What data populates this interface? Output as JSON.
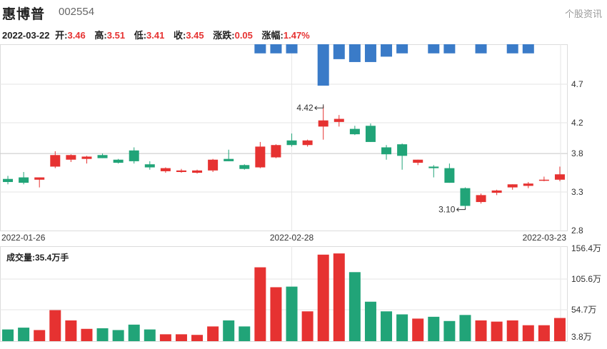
{
  "header": {
    "name": "惠博普",
    "code": "002554",
    "news_link": "个股资讯"
  },
  "quote": {
    "date": "2022-03-22",
    "open_label": "开:",
    "open": "3.46",
    "high_label": "高:",
    "high": "3.51",
    "low_label": "低:",
    "low": "3.41",
    "close_label": "收:",
    "close": "3.45",
    "change_label": "涨跌:",
    "change": "0.05",
    "pct_label": "涨幅:",
    "pct": "1.47%"
  },
  "colors": {
    "up": "#e63231",
    "down": "#21a478",
    "bar_top": "#3a7bc8",
    "grid": "#e6e6e6",
    "ref_line": "#cccccc"
  },
  "chart_data": [
    {
      "type": "candlestick",
      "y_ticks": [
        "4.7",
        "4.2",
        "3.8",
        "3.3",
        "2.8"
      ],
      "ylim": [
        2.8,
        4.7
      ],
      "x_labels": [
        "2022-01-26",
        "2022-02-28",
        "2022-03-23"
      ],
      "reference_price": 3.8,
      "annotations": [
        {
          "label": "4.42",
          "index": 20,
          "kind": "high"
        },
        {
          "label": "3.10",
          "index": 29,
          "kind": "low"
        }
      ],
      "candles": [
        {
          "o": 3.47,
          "h": 3.51,
          "l": 3.4,
          "c": 3.43
        },
        {
          "o": 3.49,
          "h": 3.56,
          "l": 3.4,
          "c": 3.42
        },
        {
          "o": 3.46,
          "h": 3.49,
          "l": 3.36,
          "c": 3.49
        },
        {
          "o": 3.63,
          "h": 3.83,
          "l": 3.61,
          "c": 3.78
        },
        {
          "o": 3.72,
          "h": 3.79,
          "l": 3.69,
          "c": 3.78
        },
        {
          "o": 3.73,
          "h": 3.77,
          "l": 3.67,
          "c": 3.76
        },
        {
          "o": 3.78,
          "h": 3.8,
          "l": 3.74,
          "c": 3.74
        },
        {
          "o": 3.72,
          "h": 3.73,
          "l": 3.67,
          "c": 3.68
        },
        {
          "o": 3.84,
          "h": 3.88,
          "l": 3.67,
          "c": 3.7
        },
        {
          "o": 3.66,
          "h": 3.7,
          "l": 3.59,
          "c": 3.62
        },
        {
          "o": 3.57,
          "h": 3.62,
          "l": 3.55,
          "c": 3.61
        },
        {
          "o": 3.56,
          "h": 3.6,
          "l": 3.55,
          "c": 3.58
        },
        {
          "o": 3.55,
          "h": 3.59,
          "l": 3.54,
          "c": 3.58
        },
        {
          "o": 3.58,
          "h": 3.73,
          "l": 3.56,
          "c": 3.72
        },
        {
          "o": 3.73,
          "h": 3.85,
          "l": 3.7,
          "c": 3.7
        },
        {
          "o": 3.65,
          "h": 3.66,
          "l": 3.59,
          "c": 3.6
        },
        {
          "o": 3.62,
          "h": 3.95,
          "l": 3.61,
          "c": 3.89
        },
        {
          "o": 3.75,
          "h": 3.92,
          "l": 3.74,
          "c": 3.91
        },
        {
          "o": 3.97,
          "h": 4.06,
          "l": 3.89,
          "c": 3.91
        },
        {
          "o": 3.91,
          "h": 3.98,
          "l": 3.89,
          "c": 3.97
        },
        {
          "o": 4.15,
          "h": 4.42,
          "l": 3.98,
          "c": 4.23
        },
        {
          "o": 4.21,
          "h": 4.3,
          "l": 4.15,
          "c": 4.25
        },
        {
          "o": 4.12,
          "h": 4.16,
          "l": 4.04,
          "c": 4.05
        },
        {
          "o": 4.16,
          "h": 4.19,
          "l": 3.95,
          "c": 3.95
        },
        {
          "o": 3.88,
          "h": 3.91,
          "l": 3.72,
          "c": 3.79
        },
        {
          "o": 3.92,
          "h": 3.93,
          "l": 3.59,
          "c": 3.77
        },
        {
          "o": 3.68,
          "h": 3.72,
          "l": 3.65,
          "c": 3.72
        },
        {
          "o": 3.63,
          "h": 3.65,
          "l": 3.49,
          "c": 3.61
        },
        {
          "o": 3.61,
          "h": 3.67,
          "l": 3.42,
          "c": 3.42
        },
        {
          "o": 3.35,
          "h": 3.36,
          "l": 3.1,
          "c": 3.12
        },
        {
          "o": 3.17,
          "h": 3.28,
          "l": 3.15,
          "c": 3.26
        },
        {
          "o": 3.29,
          "h": 3.33,
          "l": 3.26,
          "c": 3.32
        },
        {
          "o": 3.36,
          "h": 3.4,
          "l": 3.33,
          "c": 3.4
        },
        {
          "o": 3.38,
          "h": 3.43,
          "l": 3.35,
          "c": 3.41
        },
        {
          "o": 3.45,
          "h": 3.5,
          "l": 3.44,
          "c": 3.46
        },
        {
          "o": 3.46,
          "h": 3.63,
          "l": 3.44,
          "c": 3.53
        }
      ],
      "top_bars": [
        0,
        0,
        0,
        0,
        0,
        0,
        0,
        0,
        0,
        0,
        0,
        0,
        0,
        0,
        0,
        0,
        0.22,
        0.22,
        0.22,
        0,
        1.0,
        0.36,
        0.43,
        0.43,
        0.3,
        0.22,
        0,
        0.22,
        0.22,
        0,
        0.22,
        0,
        0.22,
        0.22,
        0,
        0
      ]
    },
    {
      "type": "bar",
      "title": "成交量:35.4万手",
      "y_ticks": [
        "156.4万",
        "105.6万",
        "54.7万",
        "3.8万"
      ],
      "ylim": [
        3.8,
        156.4
      ],
      "values": [
        22,
        25,
        21,
        54,
        37,
        23,
        24,
        21,
        30,
        22,
        14,
        14,
        13,
        27,
        37,
        27,
        125,
        92,
        93,
        52,
        146,
        148,
        117,
        68,
        52,
        47,
        40,
        43,
        36,
        46,
        37,
        35,
        37,
        29,
        29,
        41
      ]
    }
  ]
}
